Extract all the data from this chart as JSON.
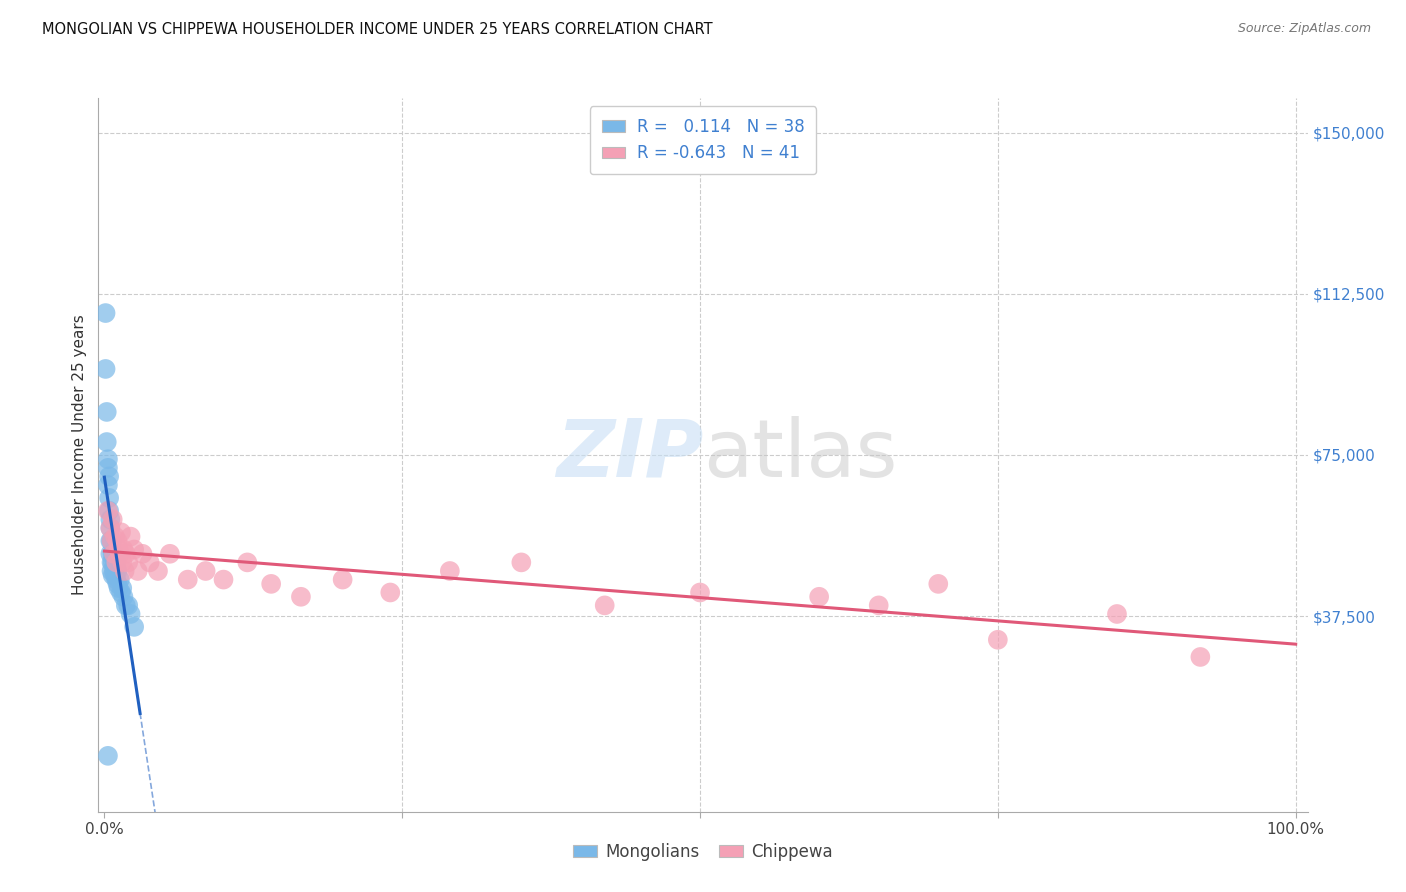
{
  "title": "MONGOLIAN VS CHIPPEWA HOUSEHOLDER INCOME UNDER 25 YEARS CORRELATION CHART",
  "source": "Source: ZipAtlas.com",
  "ylabel": "Householder Income Under 25 years",
  "mongolian_color": "#7ab8e8",
  "chippewa_color": "#f4a0b5",
  "mongolian_line_color": "#2060c0",
  "chippewa_line_color": "#e05878",
  "background_color": "#ffffff",
  "grid_color": "#cccccc",
  "ytick_color": "#4080d0",
  "ylim_min": -8000,
  "ylim_max": 158000,
  "xlim_min": -0.005,
  "xlim_max": 1.01,
  "yticks": [
    0,
    37500,
    75000,
    112500,
    150000
  ],
  "ytick_labels": [
    "",
    "$37,500",
    "$75,000",
    "$112,500",
    "$150,000"
  ],
  "mongolian_x": [
    0.001,
    0.001,
    0.002,
    0.002,
    0.003,
    0.003,
    0.003,
    0.004,
    0.004,
    0.004,
    0.005,
    0.005,
    0.005,
    0.005,
    0.006,
    0.006,
    0.006,
    0.007,
    0.007,
    0.007,
    0.008,
    0.008,
    0.009,
    0.009,
    0.01,
    0.01,
    0.011,
    0.011,
    0.012,
    0.013,
    0.014,
    0.015,
    0.016,
    0.018,
    0.02,
    0.022,
    0.025,
    0.003
  ],
  "mongolian_y": [
    108000,
    95000,
    85000,
    78000,
    72000,
    68000,
    74000,
    65000,
    70000,
    62000,
    60000,
    58000,
    55000,
    52000,
    50000,
    55000,
    48000,
    52000,
    47000,
    50000,
    48000,
    52000,
    47000,
    50000,
    46000,
    50000,
    48000,
    45000,
    44000,
    46000,
    43000,
    44000,
    42000,
    40000,
    40000,
    38000,
    35000,
    5000
  ],
  "chippewa_x": [
    0.003,
    0.005,
    0.006,
    0.007,
    0.008,
    0.009,
    0.01,
    0.011,
    0.012,
    0.013,
    0.014,
    0.015,
    0.016,
    0.017,
    0.018,
    0.02,
    0.022,
    0.025,
    0.028,
    0.032,
    0.038,
    0.045,
    0.055,
    0.07,
    0.085,
    0.1,
    0.12,
    0.14,
    0.165,
    0.2,
    0.24,
    0.29,
    0.35,
    0.42,
    0.5,
    0.6,
    0.65,
    0.7,
    0.75,
    0.85,
    0.92
  ],
  "chippewa_y": [
    62000,
    58000,
    55000,
    60000,
    52000,
    56000,
    50000,
    55000,
    53000,
    52000,
    57000,
    50000,
    53000,
    48000,
    52000,
    50000,
    56000,
    53000,
    48000,
    52000,
    50000,
    48000,
    52000,
    46000,
    48000,
    46000,
    50000,
    45000,
    42000,
    46000,
    43000,
    48000,
    50000,
    40000,
    43000,
    42000,
    40000,
    45000,
    32000,
    38000,
    28000
  ],
  "legend_label_mongolian": "R =   0.114   N = 38",
  "legend_label_chippewa": "R = -0.643   N = 41",
  "bottom_legend_mongolians": "Mongolians",
  "bottom_legend_chippewa": "Chippewa"
}
